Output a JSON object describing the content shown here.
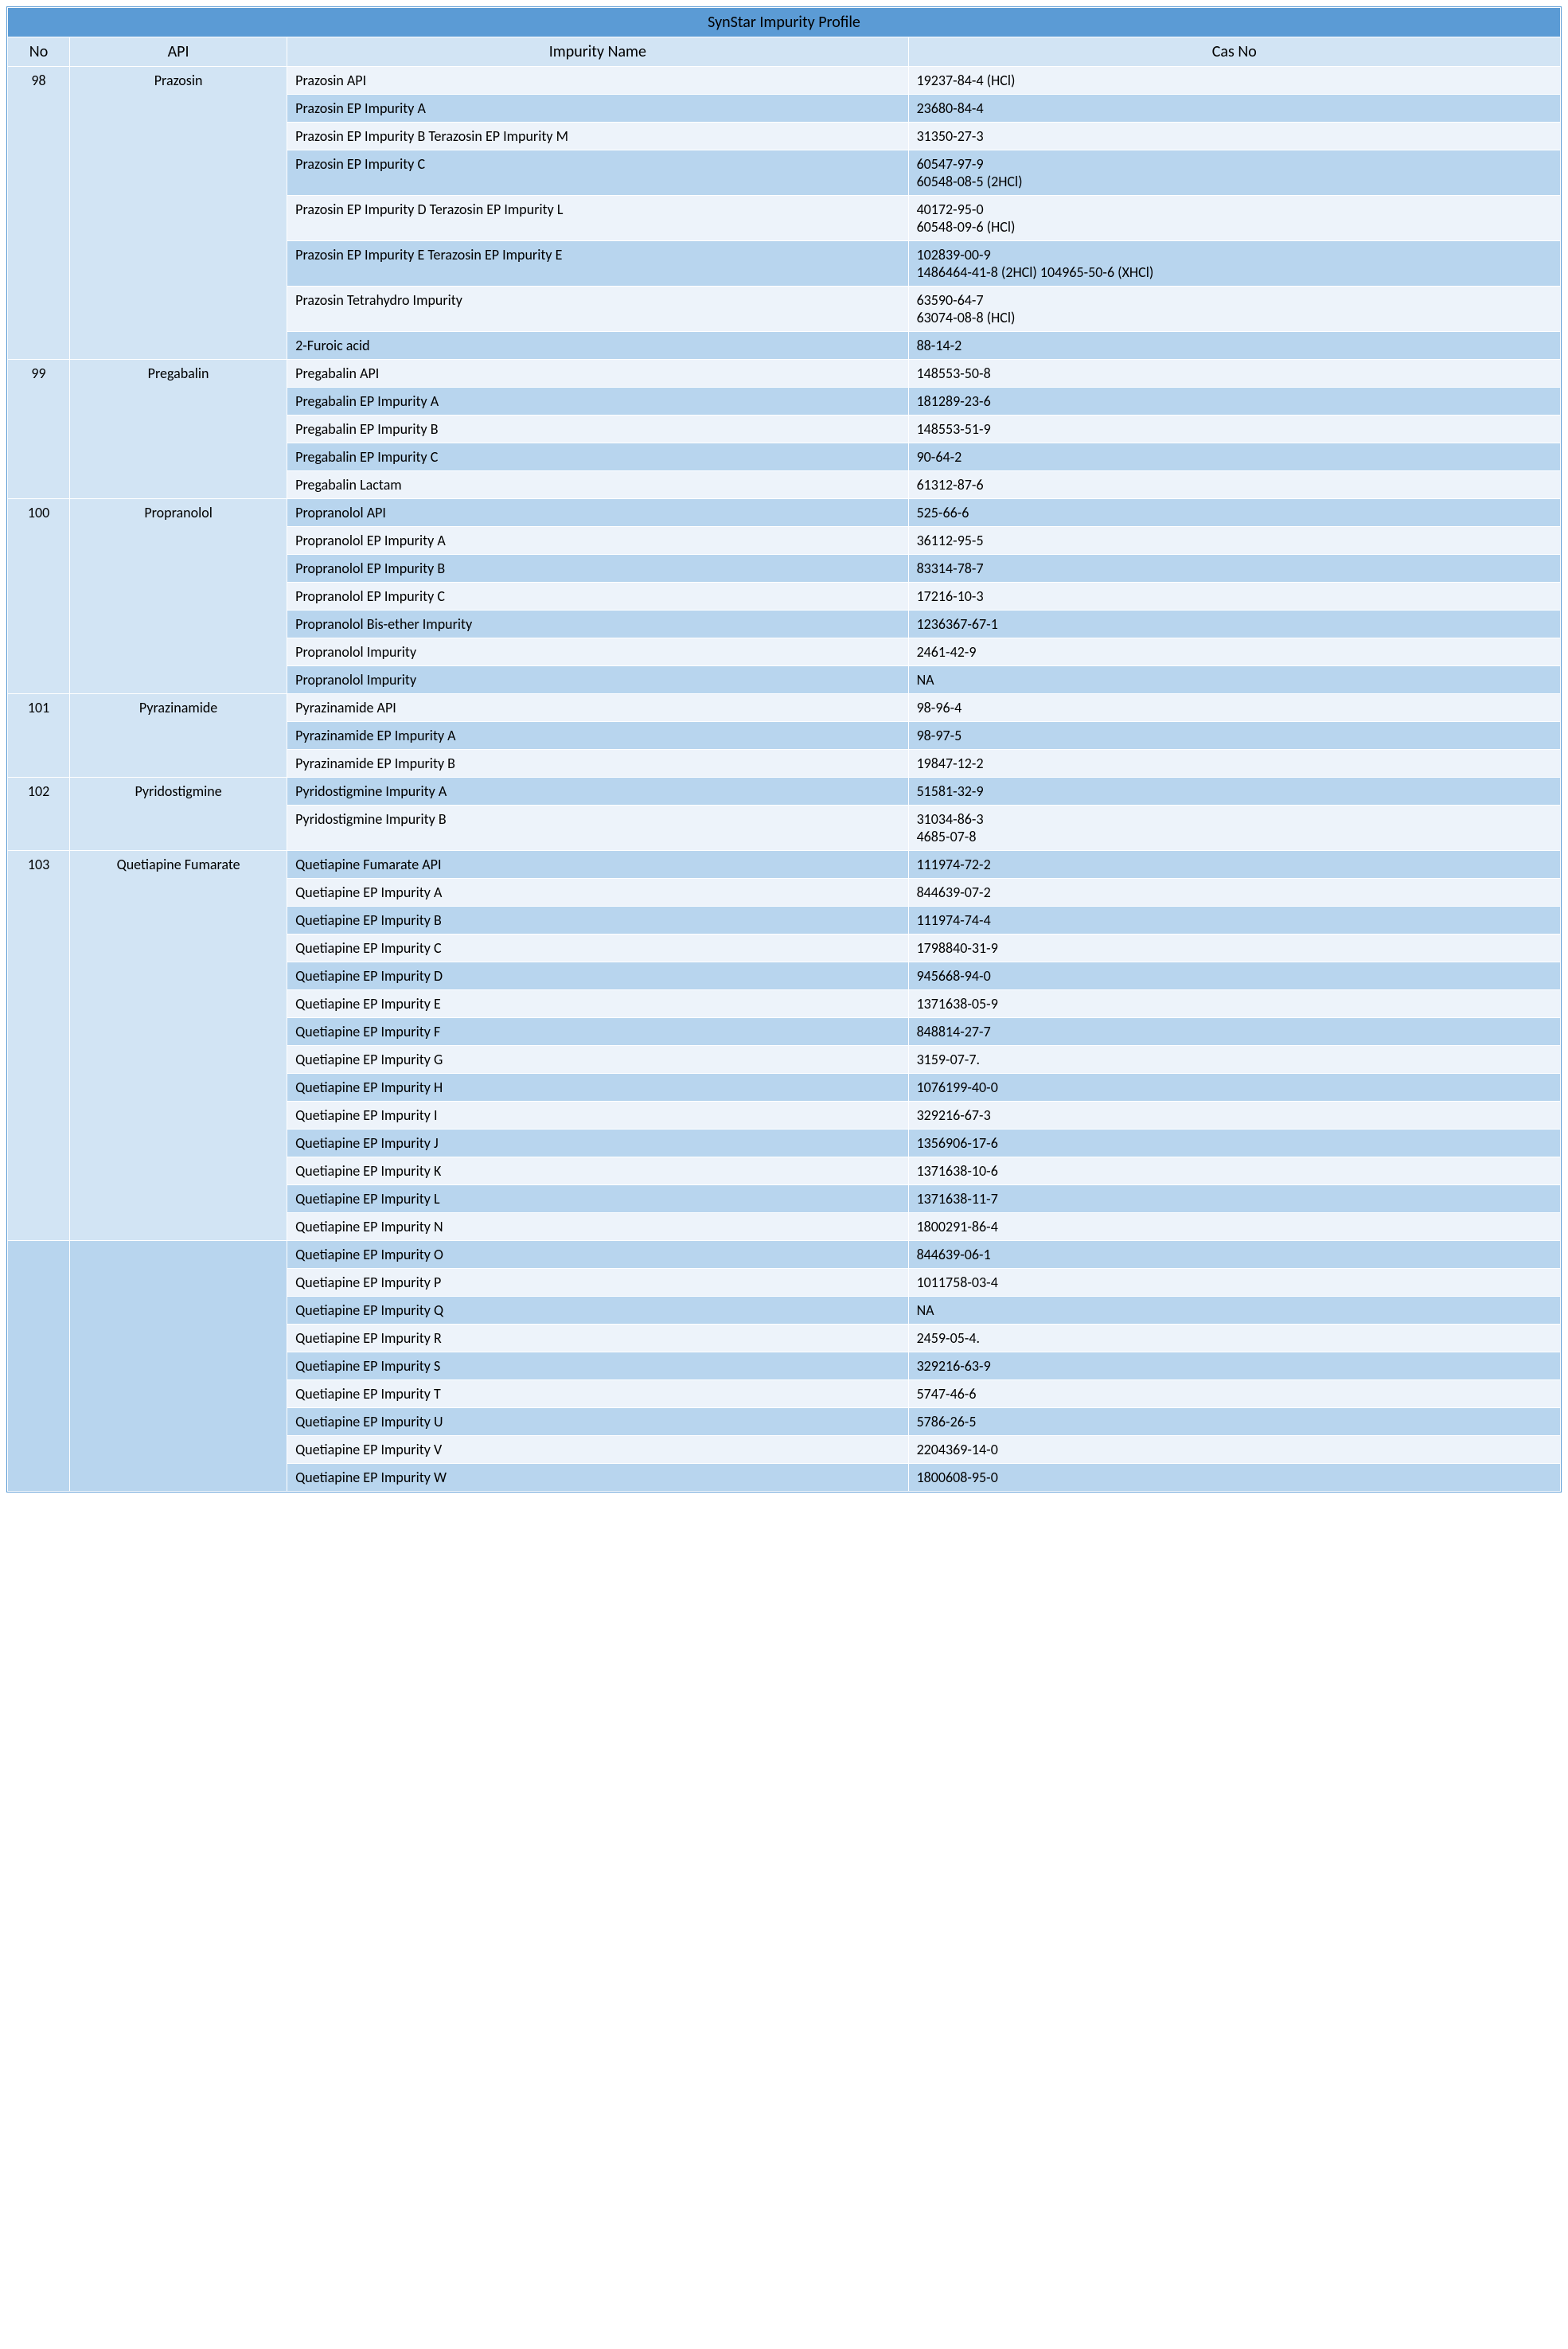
{
  "title": "SynStar Impurity Profile",
  "headers": {
    "no": "No",
    "api": "API",
    "name": "Impurity Name",
    "cas": "Cas No"
  },
  "colors": {
    "titleBg": "#5b9bd5",
    "headerBg": "#d2e4f4",
    "rowLightBg": "#edf3fa",
    "rowDarkBg": "#b8d5ee",
    "border": "#ffffff",
    "text": "#000000"
  },
  "fontSizes": {
    "title": 20,
    "header": 20,
    "body": 18
  },
  "colWidths": {
    "no": "4%",
    "api": "14%",
    "name": "40%",
    "cas": "42%"
  },
  "groups": [
    {
      "no": "98",
      "api": "Prazosin",
      "headerSpan": 8,
      "secondHeader": null,
      "items": [
        {
          "name": "Prazosin API",
          "cas": "19237-84-4 (HCl)",
          "shade": "light"
        },
        {
          "name": "Prazosin EP Impurity A",
          "cas": "23680-84-4",
          "shade": "dark"
        },
        {
          "name": "Prazosin EP Impurity B Terazosin EP Impurity M",
          "cas": "31350-27-3",
          "shade": "light"
        },
        {
          "name": "Prazosin EP Impurity C",
          "cas": "60547-97-9\n60548-08-5 (2HCl)",
          "shade": "dark"
        },
        {
          "name": "Prazosin EP Impurity D Terazosin EP Impurity L",
          "cas": "40172-95-0\n60548-09-6 (HCl)",
          "shade": "light"
        },
        {
          "name": "Prazosin EP Impurity E Terazosin EP Impurity E",
          "cas": "102839-00-9\n1486464-41-8 (2HCl) 104965-50-6 (XHCl)",
          "shade": "dark"
        },
        {
          "name": "Prazosin Tetrahydro Impurity",
          "cas": "63590-64-7\n63074-08-8 (HCl)",
          "shade": "light"
        },
        {
          "name": "2-Furoic acid",
          "cas": "88-14-2",
          "shade": "dark"
        }
      ]
    },
    {
      "no": "99",
      "api": "Pregabalin",
      "headerSpan": 5,
      "secondHeader": null,
      "items": [
        {
          "name": "Pregabalin API",
          "cas": "148553-50-8",
          "shade": "light"
        },
        {
          "name": "Pregabalin EP Impurity A",
          "cas": "181289-23-6",
          "shade": "dark"
        },
        {
          "name": "Pregabalin EP Impurity B",
          "cas": "148553-51-9",
          "shade": "light"
        },
        {
          "name": "Pregabalin EP Impurity C",
          "cas": "90-64-2",
          "shade": "dark"
        },
        {
          "name": "Pregabalin Lactam",
          "cas": "61312-87-6",
          "shade": "light"
        }
      ]
    },
    {
      "no": "100",
      "api": "Propranolol",
      "headerSpan": 7,
      "secondHeader": null,
      "items": [
        {
          "name": "Propranolol API",
          "cas": "525-66-6",
          "shade": "dark"
        },
        {
          "name": "Propranolol EP Impurity A",
          "cas": "36112-95-5",
          "shade": "light"
        },
        {
          "name": "Propranolol EP Impurity B",
          "cas": "83314-78-7",
          "shade": "dark"
        },
        {
          "name": "Propranolol EP Impurity C",
          "cas": "17216-10-3",
          "shade": "light"
        },
        {
          "name": "Propranolol Bis-ether Impurity",
          "cas": "1236367-67-1",
          "shade": "dark"
        },
        {
          "name": "Propranolol Impurity",
          "cas": "2461-42-9",
          "shade": "light"
        },
        {
          "name": "Propranolol Impurity",
          "cas": "NA",
          "shade": "dark"
        }
      ]
    },
    {
      "no": "101",
      "api": "Pyrazinamide",
      "headerSpan": 3,
      "secondHeader": null,
      "items": [
        {
          "name": "Pyrazinamide API",
          "cas": "98-96-4",
          "shade": "light"
        },
        {
          "name": "Pyrazinamide EP Impurity A",
          "cas": "98-97-5",
          "shade": "dark"
        },
        {
          "name": "Pyrazinamide EP Impurity B",
          "cas": "19847-12-2",
          "shade": "light"
        }
      ]
    },
    {
      "no": "102",
      "api": "Pyridostigmine",
      "headerSpan": 2,
      "secondHeader": null,
      "items": [
        {
          "name": "Pyridostigmine Impurity A",
          "cas": "51581-32-9",
          "shade": "dark"
        },
        {
          "name": "Pyridostigmine Impurity B",
          "cas": "31034-86-3\n4685-07-8",
          "shade": "light"
        }
      ]
    },
    {
      "no": "103",
      "api": "Quetiapine Fumarate",
      "headerSpan": 14,
      "secondHeader": {
        "no": "",
        "api": "",
        "span": 9,
        "shade": "dark"
      },
      "items": [
        {
          "name": "Quetiapine Fumarate API",
          "cas": "111974-72-2",
          "shade": "dark"
        },
        {
          "name": "Quetiapine EP Impurity A",
          "cas": "844639-07-2",
          "shade": "light"
        },
        {
          "name": "Quetiapine EP Impurity B",
          "cas": "111974-74-4",
          "shade": "dark"
        },
        {
          "name": "Quetiapine EP Impurity C",
          "cas": "1798840-31-9",
          "shade": "light"
        },
        {
          "name": "Quetiapine EP Impurity D",
          "cas": "945668-94-0",
          "shade": "dark"
        },
        {
          "name": "Quetiapine EP Impurity E",
          "cas": "1371638-05-9",
          "shade": "light"
        },
        {
          "name": "Quetiapine EP Impurity F",
          "cas": "848814-27-7",
          "shade": "dark"
        },
        {
          "name": "Quetiapine EP Impurity G",
          "cas": "3159-07-7.",
          "shade": "light"
        },
        {
          "name": "Quetiapine EP Impurity H",
          "cas": "1076199-40-0",
          "shade": "dark"
        },
        {
          "name": "Quetiapine EP Impurity I",
          "cas": "329216-67-3",
          "shade": "light"
        },
        {
          "name": "Quetiapine EP Impurity J",
          "cas": "1356906-17-6",
          "shade": "dark"
        },
        {
          "name": "Quetiapine EP Impurity K",
          "cas": "1371638-10-6",
          "shade": "light"
        },
        {
          "name": "Quetiapine EP Impurity L",
          "cas": "1371638-11-7",
          "shade": "dark"
        },
        {
          "name": "Quetiapine EP Impurity N",
          "cas": "1800291-86-4",
          "shade": "light"
        },
        {
          "name": "Quetiapine EP Impurity O",
          "cas": "844639-06-1",
          "shade": "dark",
          "startSecond": true
        },
        {
          "name": "Quetiapine EP Impurity P",
          "cas": "1011758-03-4",
          "shade": "light"
        },
        {
          "name": "Quetiapine EP Impurity Q",
          "cas": "NA",
          "shade": "dark"
        },
        {
          "name": "Quetiapine EP Impurity R",
          "cas": "2459-05-4.",
          "shade": "light"
        },
        {
          "name": "Quetiapine EP Impurity S",
          "cas": "329216-63-9",
          "shade": "dark"
        },
        {
          "name": "Quetiapine EP Impurity T",
          "cas": "5747-46-6",
          "shade": "light"
        },
        {
          "name": "Quetiapine EP Impurity U",
          "cas": "5786-26-5",
          "shade": "dark"
        },
        {
          "name": "Quetiapine EP Impurity V",
          "cas": "2204369-14-0",
          "shade": "light"
        },
        {
          "name": "Quetiapine EP Impurity W",
          "cas": "1800608-95-0",
          "shade": "dark"
        }
      ]
    }
  ]
}
